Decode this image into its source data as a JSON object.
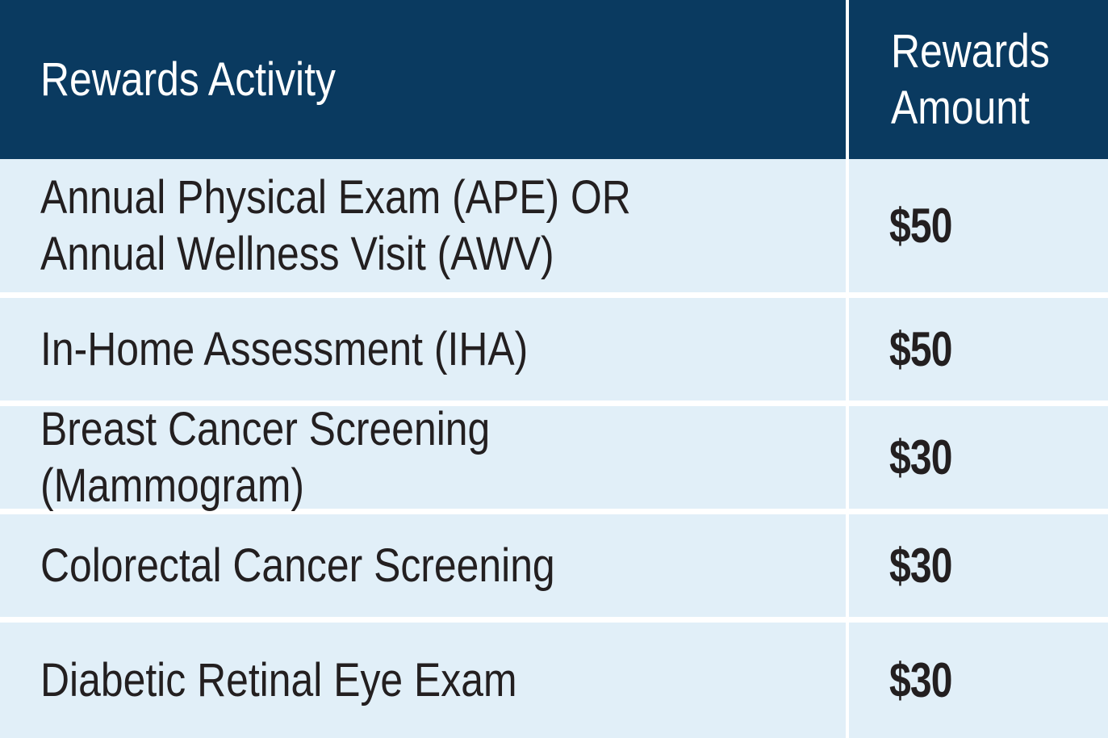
{
  "table": {
    "headers": {
      "activity": "Rewards Activity",
      "amount": "Rewards Amount"
    },
    "rows": [
      {
        "activity": "Annual Physical Exam (APE) OR Annual Wellness Visit (AWV)",
        "amount": "$50"
      },
      {
        "activity": "In-Home Assessment (IHA)",
        "amount": "$50"
      },
      {
        "activity": "Breast Cancer Screening (Mammogram)",
        "amount": "$30"
      },
      {
        "activity": "Colorectal Cancer Screening",
        "amount": "$30"
      },
      {
        "activity": "Diabetic Retinal Eye Exam",
        "amount": "$30"
      }
    ],
    "colors": {
      "header_bg": "#0a3a60",
      "row_bg": "#e1eff8",
      "text": "#231f20"
    }
  }
}
